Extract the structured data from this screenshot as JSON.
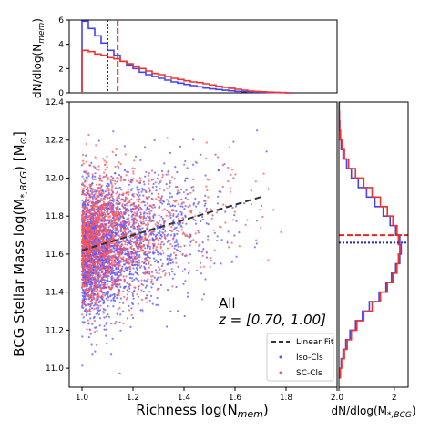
{
  "chart_data": [
    {
      "type": "scatter",
      "panel": "main",
      "xlabel": "Richness log(N_mem)",
      "ylabel": "BCG Stellar Mass log(M_*,BCG) [M_⊙]",
      "xlim": [
        0.95,
        2.0
      ],
      "ylim": [
        10.9,
        12.4
      ],
      "xticks": [
        "1.0",
        "1.2",
        "1.4",
        "1.6",
        "1.8",
        "2.0"
      ],
      "yticks": [
        "11.0",
        "11.2",
        "11.4",
        "11.6",
        "11.8",
        "12.0",
        "12.2",
        "12.4"
      ],
      "annotation": {
        "line1": "All",
        "line2": "z = [0.70, 1.00]"
      },
      "legend": {
        "placement": "lower-right",
        "entries": [
          "Linear Fit",
          "Iso-Cls",
          "SC-Cls"
        ]
      },
      "fit_line": {
        "name": "Linear Fit",
        "x": [
          1.0,
          1.7
        ],
        "y": [
          11.62,
          11.9
        ],
        "color": "#333333"
      },
      "series": [
        {
          "name": "Iso-Cls",
          "color": "#5555ff",
          "n_points": 2600,
          "center_y": 11.64,
          "sigma_y": 0.17,
          "slope": 0.35
        },
        {
          "name": "SC-Cls",
          "color": "#ff5555",
          "n_points": 1700,
          "center_y": 11.68,
          "sigma_y": 0.16,
          "slope": 0.35
        }
      ]
    },
    {
      "type": "line",
      "panel": "top-histogram",
      "ylabel": "dN/dlog(N_mem)",
      "ylim": [
        0,
        6
      ],
      "yticks": [
        "0",
        "2",
        "4",
        "6"
      ],
      "x": [
        1.0,
        1.025,
        1.05,
        1.075,
        1.1,
        1.125,
        1.15,
        1.175,
        1.2,
        1.225,
        1.25,
        1.275,
        1.3,
        1.325,
        1.35,
        1.375,
        1.4,
        1.425,
        1.45,
        1.475,
        1.5,
        1.525,
        1.55,
        1.575,
        1.6,
        1.625,
        1.65,
        1.675,
        1.7,
        1.725,
        1.75,
        1.775,
        1.8
      ],
      "series": [
        {
          "name": "Iso-Cls",
          "color": "#4444ee",
          "values": [
            5.9,
            5.3,
            4.7,
            4.1,
            3.5,
            3.1,
            2.6,
            2.3,
            2.0,
            1.7,
            1.5,
            1.35,
            1.2,
            1.05,
            0.9,
            0.8,
            0.7,
            0.6,
            0.5,
            0.4,
            0.33,
            0.28,
            0.22,
            0.17,
            0.13,
            0.1,
            0.07,
            0.05,
            0.04,
            0.03,
            0.02,
            0.01,
            0.0
          ]
        },
        {
          "name": "SC-Cls",
          "color": "#ee3333",
          "values": [
            3.5,
            3.4,
            3.2,
            3.1,
            2.9,
            2.8,
            2.6,
            2.4,
            2.2,
            2.0,
            1.8,
            1.6,
            1.5,
            1.35,
            1.2,
            1.1,
            1.0,
            0.9,
            0.85,
            0.75,
            0.65,
            0.55,
            0.45,
            0.38,
            0.3,
            0.22,
            0.15,
            0.12,
            0.09,
            0.06,
            0.04,
            0.02,
            0.0
          ]
        }
      ],
      "medians": [
        {
          "name": "Iso-Cls",
          "x": 1.1,
          "color": "#2222cc",
          "style": "dotted"
        },
        {
          "name": "SC-Cls",
          "x": 1.14,
          "color": "#ee2222",
          "style": "dashed"
        }
      ]
    },
    {
      "type": "line",
      "panel": "right-histogram",
      "xlabel": "dN/dlog(M_*,BCG)",
      "xlim": [
        0,
        2.5
      ],
      "xticks": [
        "0",
        "2"
      ],
      "y": [
        10.95,
        11.0,
        11.05,
        11.1,
        11.15,
        11.2,
        11.25,
        11.3,
        11.35,
        11.4,
        11.45,
        11.5,
        11.55,
        11.6,
        11.65,
        11.7,
        11.75,
        11.8,
        11.85,
        11.9,
        11.95,
        12.0,
        12.05,
        12.1,
        12.15,
        12.2,
        12.25,
        12.3,
        12.35
      ],
      "series": [
        {
          "name": "Iso-Cls",
          "color": "#4444ee",
          "values": [
            0.05,
            0.08,
            0.15,
            0.25,
            0.4,
            0.6,
            0.85,
            1.1,
            1.45,
            1.7,
            1.9,
            2.05,
            2.2,
            2.25,
            2.2,
            2.05,
            1.85,
            1.6,
            1.3,
            1.0,
            0.7,
            0.45,
            0.28,
            0.15,
            0.08,
            0.05,
            0.03,
            0.02,
            0.01
          ]
        },
        {
          "name": "SC-Cls",
          "color": "#ee3333",
          "values": [
            0.05,
            0.1,
            0.2,
            0.3,
            0.45,
            0.65,
            0.9,
            1.2,
            1.5,
            1.75,
            1.95,
            2.1,
            2.15,
            2.2,
            2.15,
            2.1,
            1.95,
            1.75,
            1.5,
            1.2,
            0.9,
            0.6,
            0.35,
            0.2,
            0.12,
            0.06,
            0.03,
            0.02,
            0.01
          ]
        }
      ],
      "medians": [
        {
          "name": "Iso-Cls",
          "y": 11.66,
          "color": "#2222cc",
          "style": "dotted"
        },
        {
          "name": "SC-Cls",
          "y": 11.7,
          "color": "#ee2222",
          "style": "dashed"
        }
      ]
    }
  ]
}
